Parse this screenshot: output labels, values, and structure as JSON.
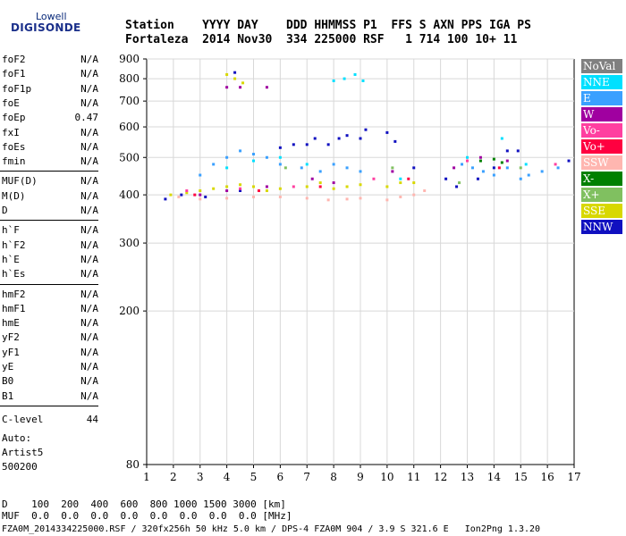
{
  "logo": {
    "line1": "Lowell",
    "line2": "DIGISONDE"
  },
  "header": {
    "line1": "Station    YYYY DAY    DDD HHMMSS P1  FFS S AXN PPS IGA PS",
    "line2": "Fortaleza  2014 Nov30  334 225000 RSF   1 714 100 10+ 11"
  },
  "params": {
    "group1": [
      {
        "name": "foF2",
        "value": "N/A"
      },
      {
        "name": "foF1",
        "value": "N/A"
      },
      {
        "name": "foF1p",
        "value": "N/A"
      },
      {
        "name": "foE",
        "value": "N/A"
      },
      {
        "name": "foEp",
        "value": "0.47"
      },
      {
        "name": "fxI",
        "value": "N/A"
      },
      {
        "name": "foEs",
        "value": "N/A"
      },
      {
        "name": "fmin",
        "value": "N/A"
      }
    ],
    "group2": [
      {
        "name": "MUF(D)",
        "value": "N/A"
      },
      {
        "name": "M(D)",
        "value": "N/A"
      },
      {
        "name": "D",
        "value": "N/A"
      }
    ],
    "group3": [
      {
        "name": "h`F",
        "value": "N/A"
      },
      {
        "name": "h`F2",
        "value": "N/A"
      },
      {
        "name": "h`E",
        "value": "N/A"
      },
      {
        "name": "h`Es",
        "value": "N/A"
      }
    ],
    "group4": [
      {
        "name": "hmF2",
        "value": "N/A"
      },
      {
        "name": "hmF1",
        "value": "N/A"
      },
      {
        "name": "hmE",
        "value": "N/A"
      },
      {
        "name": "yF2",
        "value": "N/A"
      },
      {
        "name": "yF1",
        "value": "N/A"
      },
      {
        "name": "yE",
        "value": "N/A"
      },
      {
        "name": "B0",
        "value": "N/A"
      },
      {
        "name": "B1",
        "value": "N/A"
      }
    ],
    "clevel": {
      "name": "C-level",
      "value": "44"
    }
  },
  "auto": {
    "line1": "Auto:",
    "line2": "Artist5",
    "line3": "500200"
  },
  "footer": {
    "line1": "D    100  200  400  600  800 1000 1500 3000 [km]",
    "line2": "MUF  0.0  0.0  0.0  0.0  0.0  0.0  0.0  0.0 [MHz]",
    "line3": "FZA0M_2014334225000.RSF / 320fx256h 50 kHz 5.0 km / DPS-4 FZA0M 904 / 3.9 S 321.6 E   Ion2Png 1.3.20"
  },
  "legend": [
    {
      "label": "NoVal",
      "color": "#808080",
      "text": "#ffffff"
    },
    {
      "label": "NNE",
      "color": "#00e0ff",
      "text": "#ffffff"
    },
    {
      "label": "E",
      "color": "#3aa0ff",
      "text": "#ffffff"
    },
    {
      "label": "W",
      "color": "#a000a0",
      "text": "#ffffff"
    },
    {
      "label": "Vo-",
      "color": "#ff3fa0",
      "text": "#ffffff"
    },
    {
      "label": "Vo+",
      "color": "#ff0040",
      "text": "#ffffff"
    },
    {
      "label": "SSW",
      "color": "#ffb6b0",
      "text": "#ffffff"
    },
    {
      "label": "X-",
      "color": "#008000",
      "text": "#ffffff"
    },
    {
      "label": "X+",
      "color": "#80c060",
      "text": "#ffffff"
    },
    {
      "label": "SSE",
      "color": "#d8d800",
      "text": "#ffffff"
    },
    {
      "label": "NNW",
      "color": "#1010c0",
      "text": "#ffffff"
    }
  ],
  "chart_data": {
    "type": "scatter",
    "xlabel": "",
    "ylabel": "",
    "xlim": [
      1,
      17
    ],
    "ylim": [
      80,
      900
    ],
    "y_scale": "log",
    "x_ticks": [
      1,
      2,
      3,
      4,
      5,
      6,
      7,
      8,
      9,
      10,
      11,
      12,
      13,
      14,
      15,
      16,
      17
    ],
    "y_ticks": [
      80,
      200,
      300,
      400,
      500,
      600,
      700,
      800,
      900
    ],
    "grid": true,
    "series": [
      {
        "name": "NNW",
        "points": [
          [
            1.7,
            390
          ],
          [
            2.3,
            400
          ],
          [
            3.2,
            395
          ],
          [
            4.5,
            410
          ],
          [
            6.0,
            530
          ],
          [
            6.5,
            540
          ],
          [
            7.0,
            540
          ],
          [
            7.3,
            560
          ],
          [
            7.8,
            540
          ],
          [
            8.2,
            560
          ],
          [
            8.5,
            570
          ],
          [
            9.0,
            560
          ],
          [
            9.2,
            590
          ],
          [
            10.0,
            580
          ],
          [
            10.3,
            550
          ],
          [
            11.0,
            470
          ],
          [
            12.2,
            440
          ],
          [
            12.6,
            420
          ],
          [
            13.4,
            440
          ],
          [
            14.0,
            470
          ],
          [
            14.5,
            520
          ],
          [
            14.9,
            520
          ],
          [
            16.8,
            490
          ],
          [
            4.3,
            830
          ]
        ]
      },
      {
        "name": "E",
        "points": [
          [
            3.0,
            450
          ],
          [
            3.5,
            480
          ],
          [
            4.0,
            500
          ],
          [
            4.5,
            520
          ],
          [
            5.0,
            510
          ],
          [
            5.5,
            500
          ],
          [
            6.0,
            480
          ],
          [
            6.8,
            470
          ],
          [
            7.5,
            460
          ],
          [
            8.0,
            480
          ],
          [
            8.5,
            470
          ],
          [
            9.0,
            460
          ],
          [
            12.8,
            480
          ],
          [
            13.2,
            470
          ],
          [
            13.6,
            460
          ],
          [
            14.0,
            450
          ],
          [
            14.5,
            470
          ],
          [
            15.0,
            440
          ],
          [
            15.3,
            450
          ],
          [
            15.8,
            460
          ],
          [
            16.4,
            470
          ]
        ]
      },
      {
        "name": "NNE",
        "points": [
          [
            4.0,
            470
          ],
          [
            5.0,
            490
          ],
          [
            6.0,
            500
          ],
          [
            7.0,
            480
          ],
          [
            8.0,
            790
          ],
          [
            8.4,
            800
          ],
          [
            8.8,
            820
          ],
          [
            9.1,
            790
          ],
          [
            10.5,
            440
          ],
          [
            13.0,
            500
          ],
          [
            14.3,
            560
          ],
          [
            15.2,
            480
          ]
        ]
      },
      {
        "name": "SSE",
        "points": [
          [
            1.9,
            400
          ],
          [
            2.5,
            405
          ],
          [
            3.0,
            410
          ],
          [
            3.5,
            415
          ],
          [
            4.0,
            420
          ],
          [
            4.5,
            425
          ],
          [
            5.0,
            420
          ],
          [
            5.5,
            410
          ],
          [
            6.0,
            415
          ],
          [
            7.0,
            420
          ],
          [
            7.5,
            430
          ],
          [
            8.0,
            415
          ],
          [
            8.5,
            420
          ],
          [
            9.0,
            425
          ],
          [
            10.0,
            420
          ],
          [
            10.5,
            430
          ],
          [
            11.0,
            430
          ],
          [
            4.0,
            820
          ],
          [
            4.3,
            800
          ],
          [
            4.6,
            780
          ]
        ]
      },
      {
        "name": "SSW",
        "points": [
          [
            2.2,
            395
          ],
          [
            3.0,
            390
          ],
          [
            4.0,
            392
          ],
          [
            5.0,
            395
          ],
          [
            6.0,
            395
          ],
          [
            7.0,
            392
          ],
          [
            7.8,
            388
          ],
          [
            8.5,
            390
          ],
          [
            9.0,
            392
          ],
          [
            10.0,
            388
          ],
          [
            10.5,
            395
          ],
          [
            11.0,
            400
          ],
          [
            11.4,
            410
          ]
        ]
      },
      {
        "name": "W",
        "points": [
          [
            3.0,
            400
          ],
          [
            4.0,
            410
          ],
          [
            5.5,
            420
          ],
          [
            7.2,
            440
          ],
          [
            8.0,
            430
          ],
          [
            10.2,
            460
          ],
          [
            12.5,
            470
          ],
          [
            13.5,
            500
          ],
          [
            14.5,
            490
          ],
          [
            4.0,
            760
          ],
          [
            4.5,
            760
          ],
          [
            5.5,
            760
          ]
        ]
      },
      {
        "name": "Vo-",
        "points": [
          [
            2.5,
            410
          ],
          [
            4.5,
            415
          ],
          [
            6.5,
            420
          ],
          [
            9.5,
            440
          ],
          [
            13.0,
            490
          ],
          [
            16.3,
            480
          ]
        ]
      },
      {
        "name": "Vo+",
        "points": [
          [
            2.8,
            400
          ],
          [
            5.2,
            410
          ],
          [
            7.5,
            420
          ],
          [
            10.8,
            440
          ],
          [
            14.2,
            470
          ]
        ]
      },
      {
        "name": "X-",
        "points": [
          [
            13.5,
            490
          ],
          [
            14.0,
            495
          ],
          [
            14.3,
            485
          ]
        ]
      },
      {
        "name": "X+",
        "points": [
          [
            6.2,
            470
          ],
          [
            10.2,
            470
          ],
          [
            12.7,
            430
          ],
          [
            15.0,
            470
          ]
        ]
      }
    ]
  }
}
